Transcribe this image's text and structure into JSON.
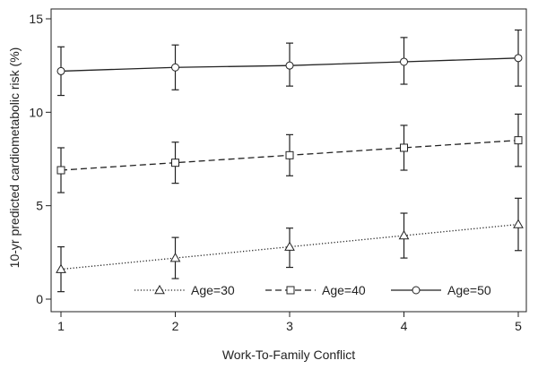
{
  "chart_data": {
    "type": "line",
    "title": "",
    "xlabel": "Work-To-Family Conflict",
    "ylabel": "10-yr predicted cardiometabolic risk (%)",
    "x": [
      1,
      2,
      3,
      4,
      5
    ],
    "xlim": [
      1,
      5
    ],
    "ylim": [
      0,
      15
    ],
    "xticks": [
      1,
      2,
      3,
      4,
      5
    ],
    "yticks": [
      0,
      5,
      10,
      15
    ],
    "grid": false,
    "legend_position": "bottom-inside",
    "error_bars": true,
    "series": [
      {
        "name": "Age=30",
        "marker": "triangle",
        "line_style": "dotted",
        "values": [
          1.6,
          2.2,
          2.8,
          3.4,
          4.0
        ],
        "lower": [
          0.4,
          1.1,
          1.7,
          2.2,
          2.6
        ],
        "upper": [
          2.8,
          3.3,
          3.8,
          4.6,
          5.4
        ]
      },
      {
        "name": "Age=40",
        "marker": "square",
        "line_style": "dashed",
        "values": [
          6.9,
          7.3,
          7.7,
          8.1,
          8.5
        ],
        "lower": [
          5.7,
          6.2,
          6.6,
          6.9,
          7.1
        ],
        "upper": [
          8.1,
          8.4,
          8.8,
          9.3,
          9.9
        ]
      },
      {
        "name": "Age=50",
        "marker": "circle",
        "line_style": "solid",
        "values": [
          12.2,
          12.4,
          12.5,
          12.7,
          12.9
        ],
        "lower": [
          10.9,
          11.2,
          11.4,
          11.5,
          11.4
        ],
        "upper": [
          13.5,
          13.6,
          13.7,
          14.0,
          14.4
        ]
      }
    ]
  }
}
